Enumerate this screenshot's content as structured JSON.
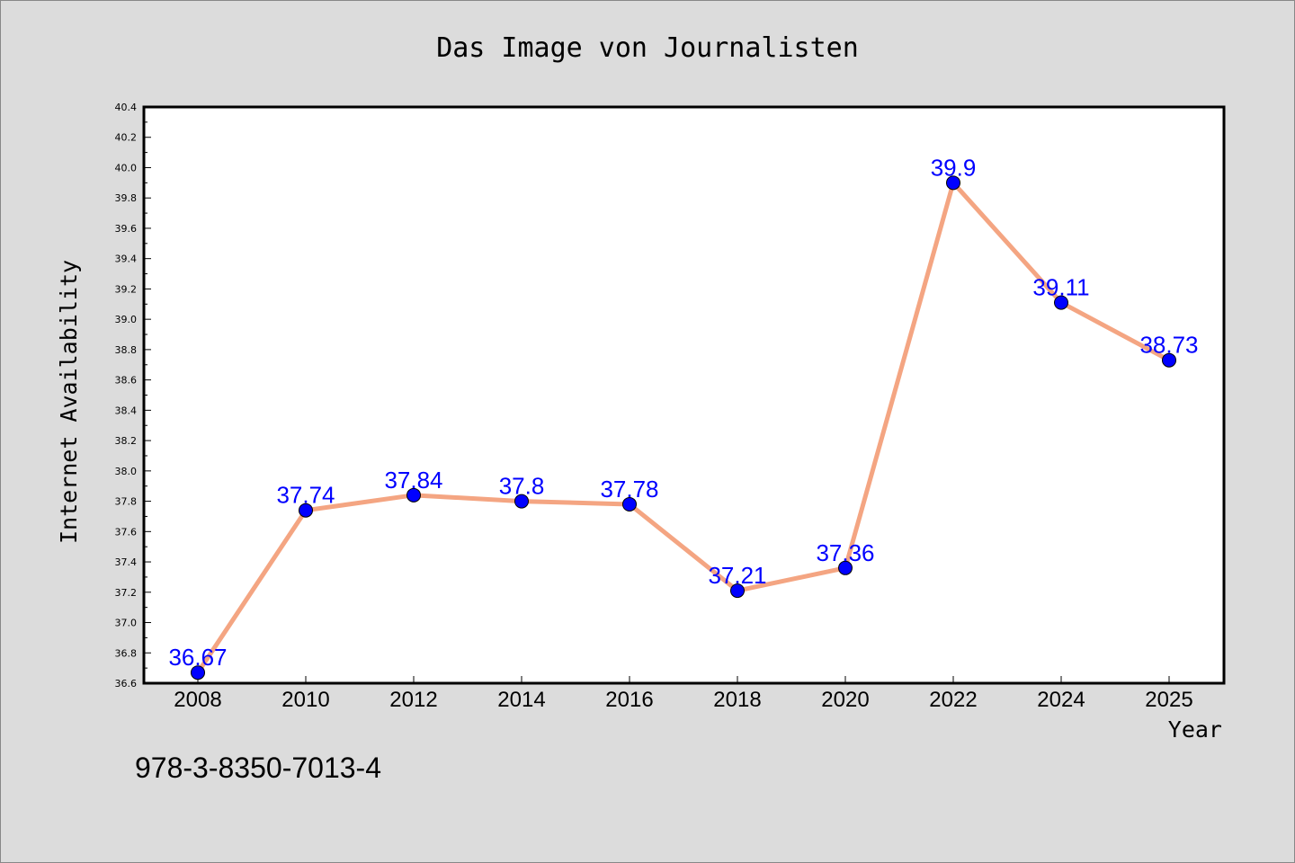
{
  "chart_data": {
    "type": "line",
    "title": "Das Image von Journalisten",
    "xlabel": "Year",
    "ylabel": "Internet Availability",
    "x": [
      "2008",
      "2010",
      "2012",
      "2014",
      "2016",
      "2018",
      "2020",
      "2022",
      "2024",
      "2025"
    ],
    "y_values": [
      36.67,
      37.74,
      37.84,
      37.8,
      37.78,
      37.21,
      37.36,
      39.9,
      39.11,
      38.73
    ],
    "data_labels": [
      "36.67",
      "37.74",
      "37.84",
      "37.8",
      "37.78",
      "37.21",
      "37.36",
      "39.9",
      "39.11",
      "38.73"
    ],
    "ylim": [
      36.6,
      40.4
    ],
    "yticks": [
      "36.6",
      "36.8",
      "37.0",
      "37.2",
      "37.4",
      "37.6",
      "37.8",
      "38.0",
      "38.2",
      "38.4",
      "38.6",
      "38.8",
      "39.0",
      "39.2",
      "39.4",
      "39.6",
      "39.8",
      "40.0",
      "40.2",
      "40.4"
    ],
    "grid": false,
    "colors": {
      "line": "#f4a582",
      "marker": "#0000ff",
      "data_label": "#0000ff",
      "background": "#dcdcdc",
      "plot_background": "#ffffff"
    }
  },
  "footer": {
    "isbn": "978-3-8350-7013-4"
  }
}
